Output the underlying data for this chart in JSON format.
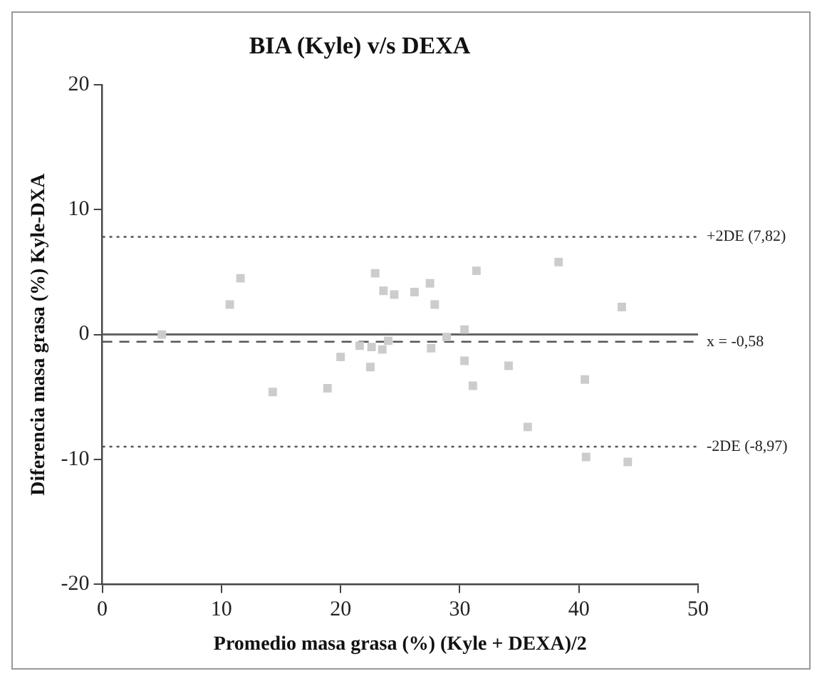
{
  "chart_data": {
    "type": "scatter",
    "title": "BIA (Kyle) v/s DEXA",
    "xlabel": "Promedio masa grasa (%) (Kyle + DEXA)/2",
    "ylabel": "Diferencia masa grasa (%) Kyle-DXA",
    "x": [
      5.0,
      11.6,
      10.7,
      14.3,
      18.9,
      20.0,
      21.6,
      22.6,
      22.5,
      22.9,
      23.6,
      24.5,
      23.5,
      24.0,
      26.2,
      27.5,
      27.9,
      27.6,
      28.9,
      30.4,
      30.4,
      31.1,
      31.4,
      34.1,
      35.7,
      38.3,
      40.5,
      40.6,
      43.6,
      44.1
    ],
    "values": [
      0.0,
      4.5,
      2.4,
      -4.6,
      -4.3,
      -1.8,
      -0.9,
      -1.0,
      -2.6,
      4.9,
      3.5,
      3.2,
      -1.2,
      -0.5,
      3.4,
      4.1,
      2.4,
      -1.1,
      -0.2,
      0.4,
      -2.1,
      -4.1,
      5.1,
      -2.5,
      -7.4,
      5.8,
      -3.6,
      -9.8,
      2.2,
      -10.2
    ],
    "color": "#cccccc",
    "marker": "square",
    "xlim": [
      0,
      50
    ],
    "xticks": [
      0,
      10,
      20,
      30,
      40,
      50
    ],
    "ylim": [
      -20,
      20
    ],
    "yticks": [
      -20,
      -10,
      0,
      10,
      20
    ],
    "grid": false,
    "legend": false,
    "ref_lines": [
      {
        "axis": "y",
        "value": 7.82,
        "label": "+2DE (7,82)",
        "line_style": "dotted",
        "color": "#555555"
      },
      {
        "axis": "y",
        "value": 0,
        "label": null,
        "line_style": "solid",
        "color": "#666666"
      },
      {
        "axis": "y",
        "value": -0.58,
        "label": "x = -0,58",
        "line_style": "dashed",
        "color": "#555555"
      },
      {
        "axis": "y",
        "value": -8.97,
        "label": "-2DE (-8,97)",
        "line_style": "dotted",
        "color": "#555555"
      }
    ]
  }
}
